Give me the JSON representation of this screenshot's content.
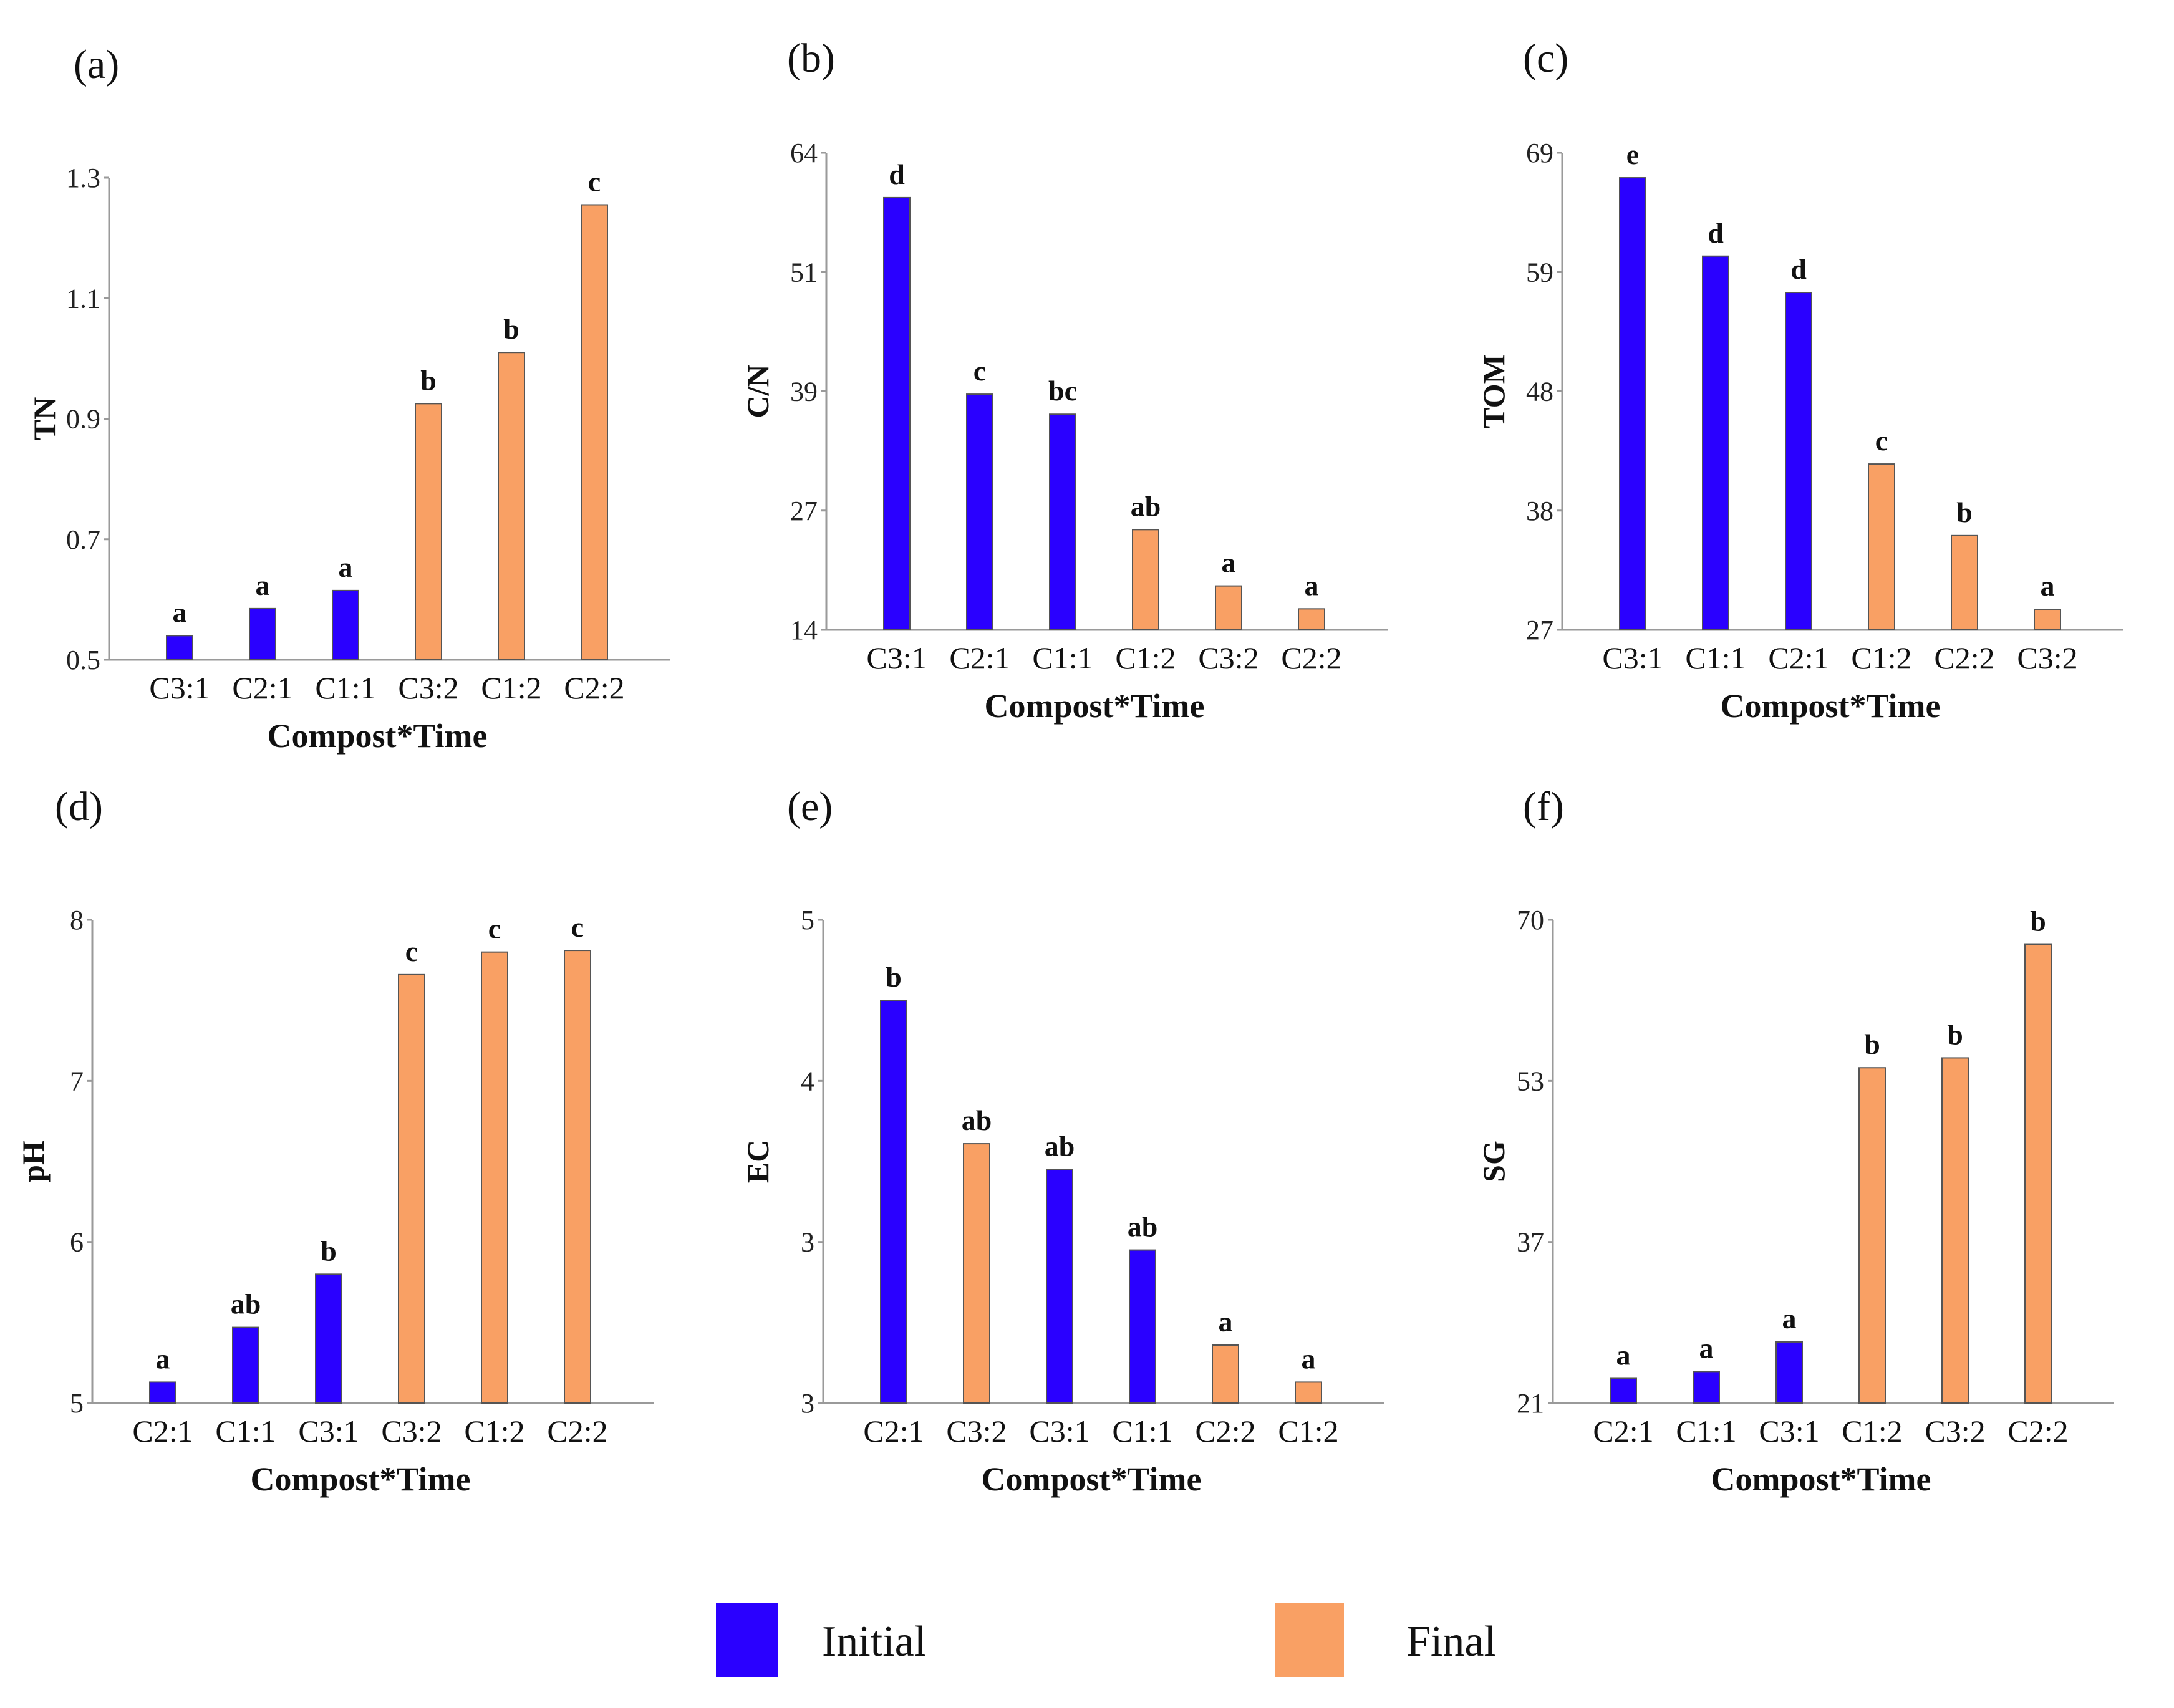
{
  "legend": {
    "items": [
      {
        "label": "Initial",
        "color": "#2a00ff"
      },
      {
        "label": "Final",
        "color": "#f9a064"
      }
    ]
  },
  "chart_data": [
    {
      "type": "bar",
      "panel": "(a)",
      "ylabel": "TN",
      "xlabel": "Compost*Time",
      "ylim": [
        0.5,
        1.3
      ],
      "yticks": [
        "0.5",
        "0.7",
        "0.9",
        "1.1",
        "1.3"
      ],
      "categories": [
        "C3:1",
        "C2:1",
        "C1:1",
        "C3:2",
        "C1:2",
        "C2:2"
      ],
      "values": [
        0.54,
        0.585,
        0.615,
        0.925,
        1.01,
        1.255
      ],
      "series": [
        "Initial",
        "Initial",
        "Initial",
        "Final",
        "Final",
        "Final"
      ],
      "letters": [
        "a",
        "a",
        "a",
        "b",
        "b",
        "c"
      ]
    },
    {
      "type": "bar",
      "panel": "(b)",
      "ylabel": "C/N",
      "xlabel": "Compost*Time",
      "ylim": [
        14,
        64
      ],
      "yticks": [
        "14",
        "27",
        "39",
        "51",
        "64"
      ],
      "categories": [
        "C3:1",
        "C2:1",
        "C1:1",
        "C1:2",
        "C3:2",
        "C2:2"
      ],
      "values": [
        59.3,
        38.7,
        36.6,
        24.5,
        18.6,
        16.2
      ],
      "series": [
        "Initial",
        "Initial",
        "Initial",
        "Final",
        "Final",
        "Final"
      ],
      "letters": [
        "d",
        "c",
        "bc",
        "ab",
        "a",
        "a"
      ]
    },
    {
      "type": "bar",
      "panel": "(c)",
      "ylabel": "TOM",
      "xlabel": "Compost*Time",
      "ylim": [
        27,
        69
      ],
      "yticks": [
        "27",
        "38",
        "48",
        "59",
        "69"
      ],
      "categories": [
        "C3:1",
        "C1:1",
        "C2:1",
        "C1:2",
        "C2:2",
        "C3:2"
      ],
      "values": [
        66.8,
        59.9,
        56.7,
        41.6,
        35.3,
        28.8
      ],
      "series": [
        "Initial",
        "Initial",
        "Initial",
        "Final",
        "Final",
        "Final"
      ],
      "letters": [
        "e",
        "d",
        "d",
        "c",
        "b",
        "a"
      ]
    },
    {
      "type": "bar",
      "panel": "(d)",
      "ylabel": "pH",
      "xlabel": "Compost*Time",
      "ylim": [
        5,
        8
      ],
      "yticks": [
        "5",
        "6",
        "7",
        "8"
      ],
      "categories": [
        "C2:1",
        "C1:1",
        "C3:1",
        "C3:2",
        "C1:2",
        "C2:2"
      ],
      "values": [
        5.13,
        5.47,
        5.8,
        7.66,
        7.8,
        7.81
      ],
      "series": [
        "Initial",
        "Initial",
        "Initial",
        "Final",
        "Final",
        "Final"
      ],
      "letters": [
        "a",
        "ab",
        "b",
        "c",
        "c",
        "c"
      ]
    },
    {
      "type": "bar",
      "panel": "(e)",
      "ylabel": "EC",
      "xlabel": "Compost*Time",
      "ylim": [
        2,
        5
      ],
      "yticks": [
        "3",
        "3",
        "4",
        "5"
      ],
      "categories": [
        "C2:1",
        "C3:2",
        "C3:1",
        "C1:1",
        "C2:2",
        "C1:2"
      ],
      "values": [
        4.5,
        3.61,
        3.45,
        2.95,
        2.36,
        2.13
      ],
      "series": [
        "Initial",
        "Final",
        "Initial",
        "Initial",
        "Final",
        "Final"
      ],
      "letters": [
        "b",
        "ab",
        "ab",
        "ab",
        "a",
        "a"
      ]
    },
    {
      "type": "bar",
      "panel": "(f)",
      "ylabel": "SG",
      "xlabel": "Compost*Time",
      "ylim": [
        21,
        70
      ],
      "yticks": [
        "21",
        "37",
        "53",
        "70"
      ],
      "categories": [
        "C2:1",
        "C1:1",
        "C3:1",
        "C1:2",
        "C3:2",
        "C2:2"
      ],
      "values": [
        23.5,
        24.2,
        27.2,
        55.0,
        56.0,
        67.5
      ],
      "series": [
        "Initial",
        "Initial",
        "Initial",
        "Final",
        "Final",
        "Final"
      ],
      "letters": [
        "a",
        "a",
        "a",
        "b",
        "b",
        "b"
      ]
    }
  ]
}
